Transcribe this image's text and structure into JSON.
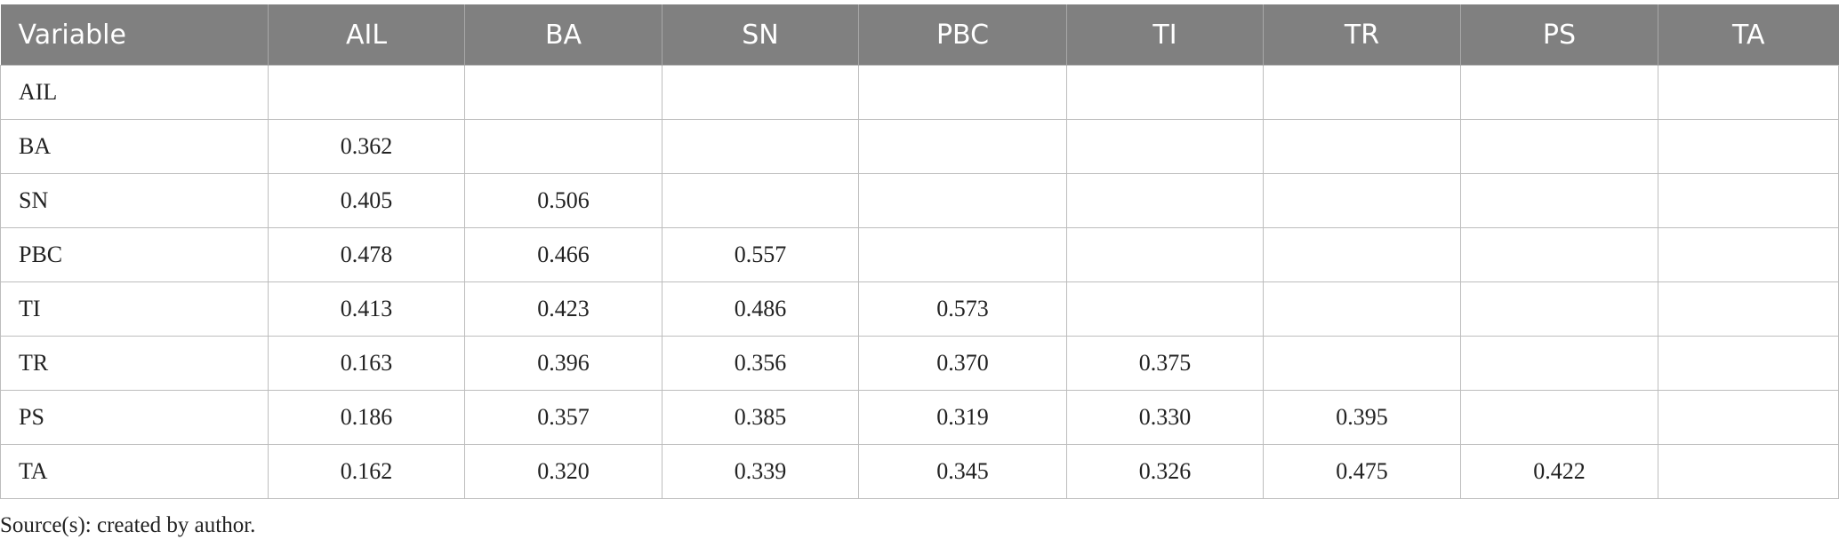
{
  "table": {
    "header": [
      "Variable",
      "AIL",
      "BA",
      "SN",
      "PBC",
      "TI",
      "TR",
      "PS",
      "TA"
    ],
    "rows": [
      [
        "AIL"
      ],
      [
        "BA",
        "0.362"
      ],
      [
        "SN",
        "0.405",
        "0.506"
      ],
      [
        "PBC",
        "0.478",
        "0.466",
        "0.557"
      ],
      [
        "TI",
        "0.413",
        "0.423",
        "0.486",
        "0.573"
      ],
      [
        "TR",
        "0.163",
        "0.396",
        "0.356",
        "0.370",
        "0.375"
      ],
      [
        "PS",
        "0.186",
        "0.357",
        "0.385",
        "0.319",
        "0.330",
        "0.395"
      ],
      [
        "TA",
        "0.162",
        "0.320",
        "0.339",
        "0.345",
        "0.326",
        "0.475",
        "0.422"
      ]
    ]
  },
  "footer": "Source(s): created by author."
}
